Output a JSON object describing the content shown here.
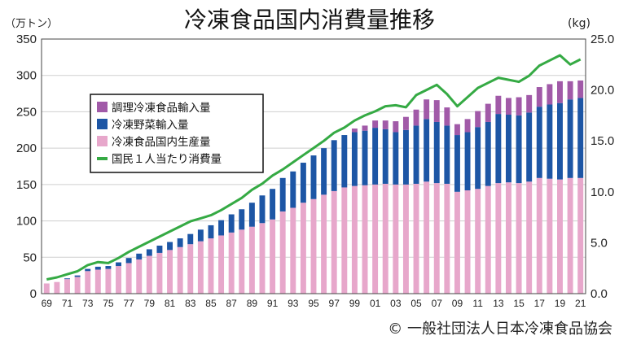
{
  "chart_data": {
    "type": "bar",
    "title": "冷凍食品国内消費量推移",
    "left_unit": "（万トン）",
    "right_unit": "(kg)",
    "x_tick_labels": [
      "69",
      "71",
      "73",
      "75",
      "77",
      "79",
      "81",
      "83",
      "85",
      "87",
      "89",
      "91",
      "93",
      "95",
      "97",
      "99",
      "01",
      "03",
      "05",
      "07",
      "09",
      "11",
      "13",
      "15",
      "17",
      "19",
      "21"
    ],
    "y_left_ticks": [
      "0",
      "50",
      "100",
      "150",
      "200",
      "250",
      "300",
      "350"
    ],
    "y_right_ticks": [
      "0.0",
      "5.0",
      "10.0",
      "15.0",
      "20.0",
      "25.0"
    ],
    "ylim_left": [
      0,
      350
    ],
    "ylim_right": [
      0,
      25
    ],
    "grid": true,
    "legend_position": "top-left",
    "categories": [
      "1969",
      "1970",
      "1971",
      "1972",
      "1973",
      "1974",
      "1975",
      "1976",
      "1977",
      "1978",
      "1979",
      "1980",
      "1981",
      "1982",
      "1983",
      "1984",
      "1985",
      "1986",
      "1987",
      "1988",
      "1989",
      "1990",
      "1991",
      "1992",
      "1993",
      "1994",
      "1995",
      "1996",
      "1997",
      "1998",
      "1999",
      "2000",
      "2001",
      "2002",
      "2003",
      "2004",
      "2005",
      "2006",
      "2007",
      "2008",
      "2009",
      "2010",
      "2011",
      "2012",
      "2013",
      "2014",
      "2015",
      "2016",
      "2017",
      "2018",
      "2019",
      "2020",
      "2021"
    ],
    "series": [
      {
        "name": "調理冷凍食品輸入量",
        "color": "#a15aa8",
        "axis": "left",
        "stack": true,
        "values": [
          0,
          0,
          0,
          0,
          0,
          0,
          0,
          0,
          0,
          0,
          0,
          0,
          0,
          0,
          0,
          0,
          0,
          0,
          0,
          0,
          0,
          0,
          0,
          0,
          0,
          0,
          0,
          0,
          0,
          0,
          5,
          7,
          10,
          12,
          15,
          18,
          22,
          27,
          30,
          25,
          15,
          18,
          22,
          25,
          25,
          23,
          25,
          24,
          27,
          28,
          30,
          25,
          24
        ]
      },
      {
        "name": "冷凍野菜輸入量",
        "color": "#1d56a5",
        "axis": "left",
        "stack": true,
        "values": [
          0,
          0,
          1,
          2,
          3,
          4,
          4,
          5,
          7,
          8,
          9,
          10,
          11,
          12,
          14,
          16,
          18,
          21,
          25,
          28,
          33,
          38,
          42,
          46,
          50,
          55,
          60,
          64,
          70,
          72,
          74,
          75,
          78,
          75,
          72,
          75,
          80,
          86,
          84,
          80,
          78,
          80,
          85,
          88,
          95,
          93,
          93,
          95,
          98,
          102,
          105,
          108,
          110
        ]
      },
      {
        "name": "冷凍食品国内生産量",
        "color": "#e7a7cb",
        "axis": "left",
        "stack": true,
        "values": [
          14,
          16,
          20,
          23,
          31,
          33,
          34,
          38,
          42,
          47,
          52,
          56,
          60,
          64,
          68,
          72,
          76,
          80,
          84,
          88,
          92,
          97,
          102,
          113,
          118,
          125,
          130,
          136,
          141,
          146,
          148,
          149,
          150,
          151,
          150,
          150,
          151,
          154,
          152,
          151,
          140,
          142,
          144,
          148,
          152,
          153,
          152,
          154,
          159,
          158,
          157,
          159,
          159
        ]
      },
      {
        "name": "国民１人当たり消費量",
        "color": "#35aa44",
        "axis": "right",
        "type": "line",
        "values": [
          1.4,
          1.6,
          1.9,
          2.2,
          2.8,
          3.1,
          3.0,
          3.5,
          4.1,
          4.6,
          5.1,
          5.6,
          6.1,
          6.6,
          7.1,
          7.4,
          7.7,
          8.2,
          8.8,
          9.4,
          10.2,
          10.8,
          11.6,
          12.2,
          12.9,
          13.6,
          14.3,
          15.0,
          15.8,
          16.3,
          17.0,
          17.5,
          17.9,
          18.4,
          18.5,
          18.3,
          19.5,
          20.0,
          20.5,
          19.6,
          18.4,
          19.3,
          20.2,
          20.7,
          21.2,
          21.0,
          20.8,
          21.4,
          22.4,
          22.9,
          23.4,
          22.5,
          23.0
        ]
      }
    ]
  },
  "copyright": "© 一般社団法人日本冷凍食品協会"
}
